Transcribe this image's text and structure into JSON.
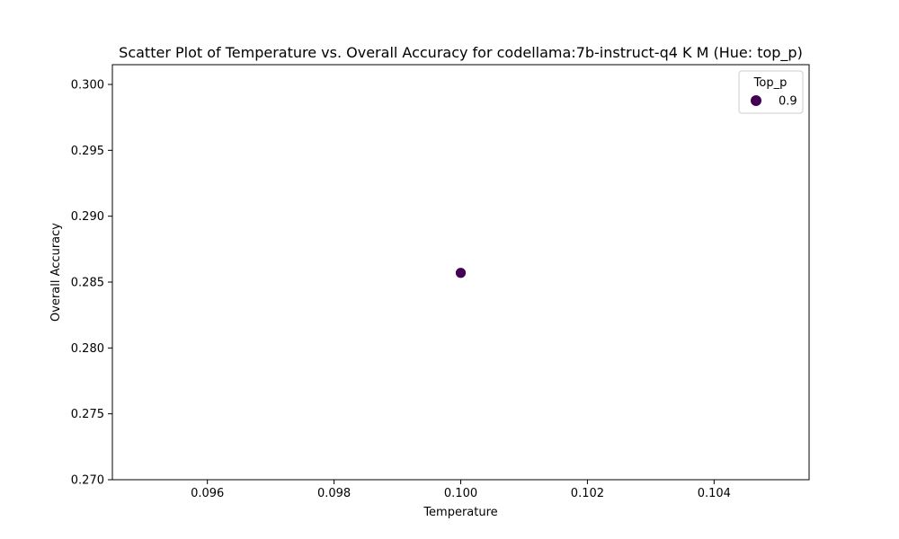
{
  "chart_data": {
    "type": "scatter",
    "title": "Scatter Plot of Temperature vs. Overall Accuracy for codellama:7b-instruct-q4 K M (Hue: top_p)",
    "xlabel": "Temperature",
    "ylabel": "Overall Accuracy",
    "xlim": [
      0.0945,
      0.1055
    ],
    "ylim": [
      0.27,
      0.3015
    ],
    "xticks": [
      0.096,
      0.098,
      0.1,
      0.102,
      0.104
    ],
    "xtick_labels": [
      "0.096",
      "0.098",
      "0.100",
      "0.102",
      "0.104"
    ],
    "yticks": [
      0.27,
      0.275,
      0.28,
      0.285,
      0.29,
      0.295,
      0.3
    ],
    "ytick_labels": [
      "0.270",
      "0.275",
      "0.280",
      "0.285",
      "0.290",
      "0.295",
      "0.300"
    ],
    "grid": false,
    "legend": {
      "title": "Top_p",
      "placement": "top-right",
      "entries": [
        {
          "label": "0.9",
          "color": "#440154"
        }
      ]
    },
    "series": [
      {
        "color": "#440154",
        "points": [
          {
            "x": 0.1,
            "y": 0.2857,
            "hue": 0.9
          }
        ]
      }
    ]
  }
}
